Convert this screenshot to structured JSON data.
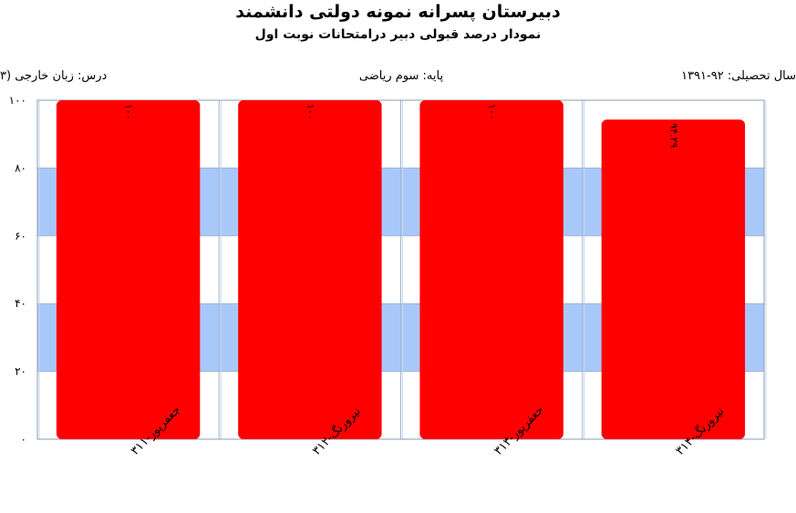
{
  "header": {
    "title": "دبیرستان پسرانه نمونه دولتی دانشمند",
    "subtitle": "نمودار درصد قبولی دبیر درامتحانات نوبت اول"
  },
  "info": {
    "year": "سال تحصیلی: ۹۲-۱۳۹۱",
    "grade": "پایه: سوم ریاضی",
    "course": "درس: زبان  خارجی  (۳"
  },
  "chart_data": {
    "type": "bar",
    "categories": [
      "جعفرپور-۳۱۱",
      "نیرورنگ-۳۱۲",
      "جعفرپور-۳۱۳",
      "نیرورنگ-۳۱۴"
    ],
    "values": [
      100,
      100,
      100,
      94.29
    ],
    "data_labels": [
      "۱۰۰",
      "۱۰۰",
      "۱۰۰",
      "۹۴.۲۹"
    ],
    "ylim": [
      0,
      100
    ],
    "yticks": [
      0,
      20,
      40,
      60,
      80,
      100
    ],
    "ytick_labels": [
      "۰",
      "۲۰",
      "۴۰",
      "۶۰",
      "۸۰",
      "۱۰۰"
    ],
    "bar_color": "#ff0000",
    "band_color": "#a9c8fa",
    "grid": true
  }
}
